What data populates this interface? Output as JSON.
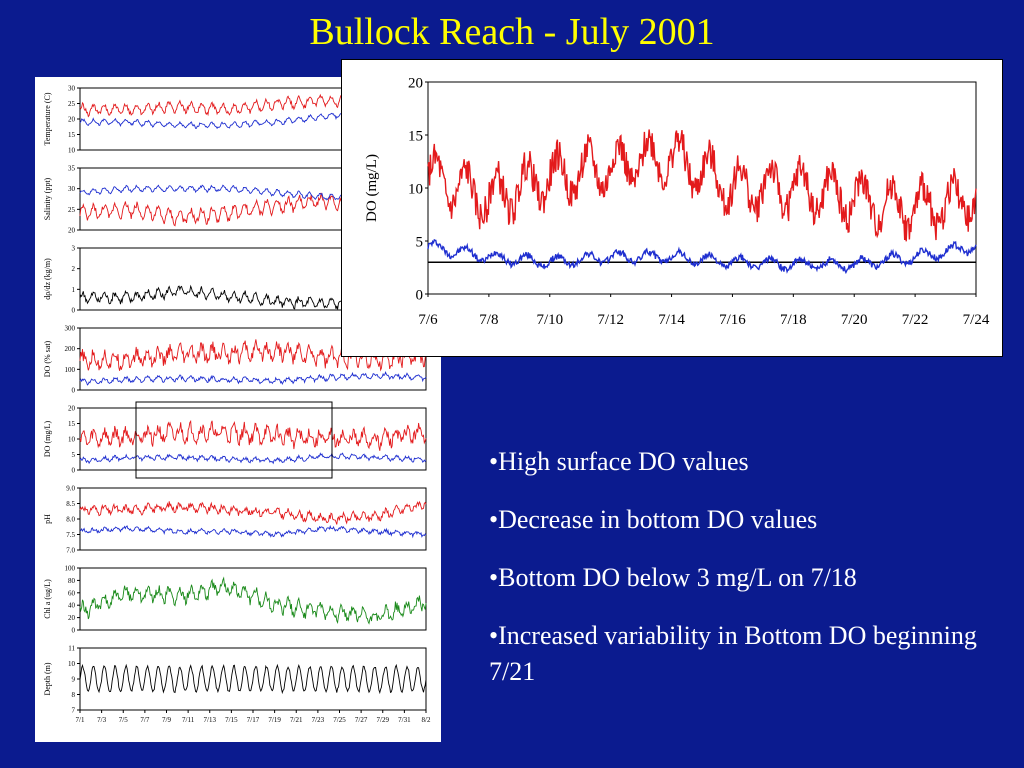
{
  "slide": {
    "title": "Bullock Reach - July 2001",
    "bullets": [
      "•High surface DO values",
      "•Decrease in bottom DO values",
      "•Bottom DO below 3 mg/L on 7/18",
      "•Increased variability in Bottom DO beginning 7/21"
    ]
  },
  "colors": {
    "background": "#0b1b8f",
    "title": "#ffff00",
    "surface": "#e31a1c",
    "bottom": "#1f2fd0",
    "chl": "#1a8a1a",
    "text": "#ffffff"
  },
  "chart_data": [
    {
      "type": "line",
      "id": "temperature",
      "ylabel": "Temperature (C)",
      "ylim": [
        10,
        30
      ],
      "yticks": [
        "10",
        "15",
        "20",
        "25",
        "30"
      ],
      "series": [
        {
          "name": "",
          "color": "#e31a1c",
          "mean": 23,
          "amp": 1.5,
          "noise": 0.8,
          "trend": [
            23,
            23,
            24,
            23,
            25,
            26,
            25,
            24
          ]
        },
        {
          "name": "",
          "color": "#1f2fd0",
          "mean": 19,
          "amp": 0.8,
          "noise": 0.4,
          "trend": [
            19,
            19,
            18,
            18,
            19,
            21,
            22,
            21
          ]
        }
      ]
    },
    {
      "type": "line",
      "id": "salinity",
      "ylabel": "Salinity (ppt)",
      "ylim": [
        20,
        35
      ],
      "yticks": [
        "20",
        "25",
        "30",
        "35"
      ],
      "series": [
        {
          "name": "",
          "color": "#e31a1c",
          "mean": 25,
          "amp": 1.5,
          "noise": 0.8,
          "trend": [
            24,
            25,
            23,
            24,
            26,
            27,
            26,
            25
          ]
        },
        {
          "name": "",
          "color": "#1f2fd0",
          "mean": 29,
          "amp": 0.6,
          "noise": 0.3,
          "trend": [
            29,
            30,
            30,
            30,
            29,
            28,
            28,
            27
          ]
        }
      ]
    },
    {
      "type": "line",
      "id": "density-gradient",
      "ylabel": "dρ/dz (kg/m)",
      "ylim": [
        0,
        3
      ],
      "yticks": [
        "0",
        "1",
        "2",
        "3"
      ],
      "series": [
        {
          "name": "",
          "color": "#000000",
          "mean": 0.6,
          "amp": 0.2,
          "noise": 0.15,
          "trend": [
            0.6,
            0.6,
            0.9,
            0.7,
            0.4,
            0.3,
            0.4,
            0.6
          ]
        }
      ]
    },
    {
      "type": "line",
      "id": "do-saturation",
      "ylabel": "DO (% sat)",
      "ylim": [
        0,
        300
      ],
      "yticks": [
        "0",
        "100",
        "200",
        "300"
      ],
      "series": [
        {
          "name": "",
          "color": "#e31a1c",
          "mean": 160,
          "amp": 30,
          "noise": 30,
          "trend": [
            140,
            150,
            170,
            180,
            190,
            160,
            150,
            160
          ]
        },
        {
          "name": "",
          "color": "#1f2fd0",
          "mean": 50,
          "amp": 10,
          "noise": 8,
          "trend": [
            40,
            50,
            55,
            50,
            45,
            60,
            70,
            60
          ]
        }
      ]
    },
    {
      "type": "line",
      "id": "do-mgl",
      "ylabel": "DO (mg/L)",
      "ylim": [
        0,
        20
      ],
      "yticks": [
        "0",
        "5",
        "10",
        "15",
        "20"
      ],
      "series": [
        {
          "name": "",
          "color": "#e31a1c",
          "mean": 11,
          "amp": 2,
          "noise": 2,
          "trend": [
            10,
            11,
            12,
            12,
            11,
            10,
            10,
            12
          ]
        },
        {
          "name": "",
          "color": "#1f2fd0",
          "mean": 3.5,
          "amp": 0.6,
          "noise": 0.5,
          "trend": [
            3,
            4,
            4,
            3.5,
            3,
            4.5,
            4,
            3.5
          ]
        }
      ]
    },
    {
      "type": "line",
      "id": "ph",
      "ylabel": "pH",
      "ylim": [
        7.0,
        9.0
      ],
      "yticks": [
        "7.0",
        "7.5",
        "8.0",
        "8.5",
        "9.0"
      ],
      "series": [
        {
          "name": "",
          "color": "#e31a1c",
          "mean": 8.3,
          "amp": 0.1,
          "noise": 0.1,
          "trend": [
            8.3,
            8.3,
            8.4,
            8.3,
            8.2,
            8.0,
            8.1,
            8.5
          ]
        },
        {
          "name": "",
          "color": "#1f2fd0",
          "mean": 7.6,
          "amp": 0.05,
          "noise": 0.05,
          "trend": [
            7.6,
            7.7,
            7.6,
            7.6,
            7.5,
            7.7,
            7.6,
            7.5
          ]
        }
      ]
    },
    {
      "type": "line",
      "id": "chlorophyll",
      "ylabel": "Chl a (ug/L)",
      "ylim": [
        0,
        100
      ],
      "yticks": [
        "0",
        "20",
        "40",
        "60",
        "80",
        "100"
      ],
      "series": [
        {
          "name": "",
          "color": "#1a8a1a",
          "mean": 50,
          "amp": 10,
          "noise": 8,
          "trend": [
            30,
            60,
            55,
            70,
            40,
            30,
            20,
            45
          ]
        }
      ]
    },
    {
      "type": "line",
      "id": "depth",
      "ylabel": "Depth (m)",
      "ylim": [
        7,
        11
      ],
      "yticks": [
        "7",
        "8",
        "9",
        "10",
        "11"
      ],
      "xticks": [
        "7/1",
        "7/3",
        "7/5",
        "7/7",
        "7/9",
        "7/11",
        "7/13",
        "7/15",
        "7/17",
        "7/19",
        "7/21",
        "7/23",
        "7/25",
        "7/27",
        "7/29",
        "7/31",
        "8/2"
      ],
      "series": [
        {
          "name": "",
          "color": "#000000",
          "mean": 9,
          "amp": 0.8,
          "noise": 0.1,
          "trend": [
            9,
            9,
            9,
            9,
            9,
            9,
            9,
            9
          ]
        }
      ]
    },
    {
      "type": "line",
      "id": "do-zoom",
      "ylabel": "DO (mg/L)",
      "ylim": [
        0,
        20
      ],
      "yticks": [
        "0",
        "5",
        "10",
        "15",
        "20"
      ],
      "xticks": [
        "7/6",
        "7/8",
        "7/10",
        "7/12",
        "7/14",
        "7/16",
        "7/18",
        "7/20",
        "7/22",
        "7/24"
      ],
      "hline": 3,
      "series": [
        {
          "name": "",
          "color": "#e31a1c",
          "mean": 10.5,
          "amp": 2,
          "noise": 1.5,
          "trend": [
            11,
            9,
            11,
            12,
            13,
            10,
            10,
            9,
            8,
            9
          ]
        },
        {
          "name": "",
          "color": "#1f2fd0",
          "mean": 3.5,
          "amp": 0.5,
          "noise": 0.3,
          "trend": [
            4.5,
            3.5,
            3,
            3.5,
            3.5,
            3,
            2.8,
            2.8,
            3.5,
            4.5
          ]
        }
      ]
    }
  ]
}
